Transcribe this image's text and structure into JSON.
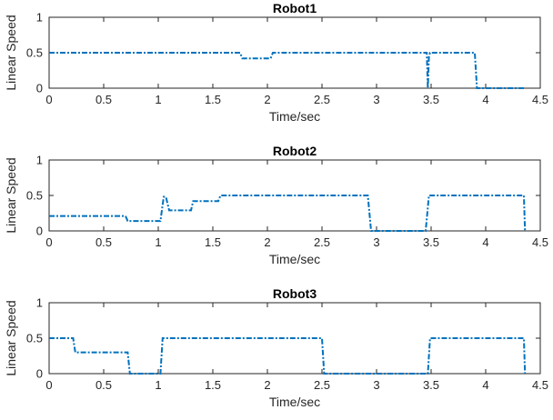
{
  "chart_data": [
    {
      "type": "line",
      "title": "Robot1",
      "xlabel": "Time/sec",
      "ylabel": "Linear Speed",
      "xlim": [
        0,
        4.5
      ],
      "ylim": [
        0,
        1
      ],
      "xticks": [
        "0",
        "0.5",
        "1",
        "1.5",
        "2",
        "2.5",
        "3",
        "3.5",
        "4",
        "4.5"
      ],
      "yticks": [
        "0",
        "0.5",
        "1"
      ],
      "grid": false,
      "color": "#0072BD",
      "series": [
        {
          "x": [
            0,
            1.75,
            1.77,
            2.03,
            2.05,
            3.46,
            3.47,
            3.48,
            3.49,
            3.9,
            3.92,
            4.35
          ],
          "y": [
            0.5,
            0.5,
            0.42,
            0.42,
            0.5,
            0.5,
            0,
            0.45,
            0.5,
            0.5,
            0,
            0
          ]
        }
      ]
    },
    {
      "type": "line",
      "title": "Robot2",
      "xlabel": "Time/sec",
      "ylabel": "Linear Speed",
      "xlim": [
        0,
        4.5
      ],
      "ylim": [
        0,
        1
      ],
      "xticks": [
        "0",
        "0.5",
        "1",
        "1.5",
        "2",
        "2.5",
        "3",
        "3.5",
        "4",
        "4.5"
      ],
      "yticks": [
        "0",
        "0.5",
        "1"
      ],
      "grid": false,
      "color": "#0072BD",
      "series": [
        {
          "x": [
            0,
            0.7,
            0.72,
            1.02,
            1.05,
            1.07,
            1.1,
            1.3,
            1.32,
            1.55,
            1.57,
            2.92,
            2.95,
            3.45,
            3.48,
            4.35,
            4.36
          ],
          "y": [
            0.21,
            0.21,
            0.14,
            0.14,
            0.48,
            0.48,
            0.29,
            0.29,
            0.42,
            0.42,
            0.5,
            0.5,
            0,
            0,
            0.5,
            0.5,
            0
          ]
        }
      ]
    },
    {
      "type": "line",
      "title": "Robot3",
      "xlabel": "Time/sec",
      "ylabel": "Linear Speed",
      "xlim": [
        0,
        4.5
      ],
      "ylim": [
        0,
        1
      ],
      "xticks": [
        "0",
        "0.5",
        "1",
        "1.5",
        "2",
        "2.5",
        "3",
        "3.5",
        "4",
        "4.5"
      ],
      "yticks": [
        "0",
        "0.5",
        "1"
      ],
      "grid": false,
      "color": "#0072BD",
      "series": [
        {
          "x": [
            0,
            0.22,
            0.24,
            0.72,
            0.74,
            1.02,
            1.04,
            2.5,
            2.52,
            3.47,
            3.49,
            4.35,
            4.36
          ],
          "y": [
            0.5,
            0.5,
            0.3,
            0.3,
            0,
            0,
            0.5,
            0.5,
            0,
            0,
            0.5,
            0.5,
            0
          ]
        }
      ]
    }
  ]
}
